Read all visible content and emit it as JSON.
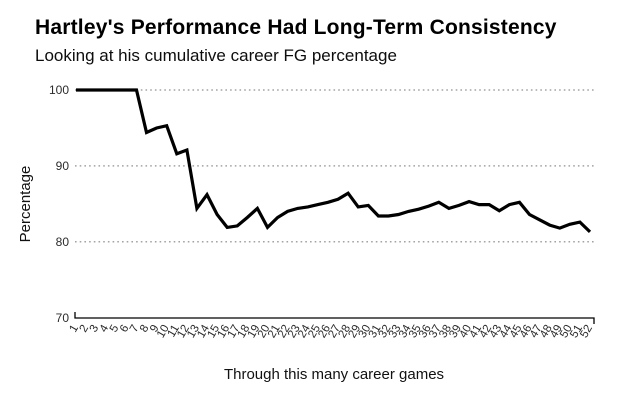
{
  "chart_data": {
    "type": "line",
    "title": "Hartley's Performance Had Long-Term Consistency",
    "subtitle": "Looking at his cumulative career FG percentage",
    "xlabel": "Through this many career games",
    "ylabel": "Percentage",
    "x": [
      1,
      2,
      3,
      4,
      5,
      6,
      7,
      8,
      9,
      10,
      11,
      12,
      13,
      14,
      15,
      16,
      17,
      18,
      19,
      20,
      21,
      22,
      23,
      24,
      25,
      26,
      27,
      28,
      29,
      30,
      31,
      32,
      33,
      34,
      35,
      36,
      37,
      38,
      39,
      40,
      41,
      42,
      43,
      44,
      45,
      46,
      47,
      48,
      49,
      50,
      51,
      52
    ],
    "series": [
      {
        "name": "Cumulative career FG percentage",
        "values": [
          100,
          100,
          100,
          100,
          100,
          100,
          100,
          94.4,
          95,
          95.3,
          91.6,
          92.1,
          84.4,
          86.2,
          83.6,
          81.9,
          82.1,
          83.2,
          84.4,
          81.9,
          83.2,
          84,
          84.4,
          84.6,
          84.9,
          85.2,
          85.6,
          86.4,
          84.6,
          84.8,
          83.4,
          83.4,
          83.6,
          84,
          84.3,
          84.7,
          85.2,
          84.4,
          84.8,
          85.3,
          84.9,
          84.9,
          84.1,
          84.9,
          85.2,
          83.6,
          82.9,
          82.2,
          81.8,
          82.3,
          82.6,
          81.3
        ]
      }
    ],
    "yticks": [
      70,
      80,
      90,
      100
    ],
    "grid_at": [
      80,
      90,
      100
    ],
    "ylim": [
      70,
      100
    ],
    "grid_style": "dotted horizontal gridlines, no vertical grid",
    "legend": "none",
    "line_color": "#000000",
    "grid_color": "#a3a3a3",
    "axis_color": "#000000",
    "tick_label_color": "#2b2b2b"
  }
}
